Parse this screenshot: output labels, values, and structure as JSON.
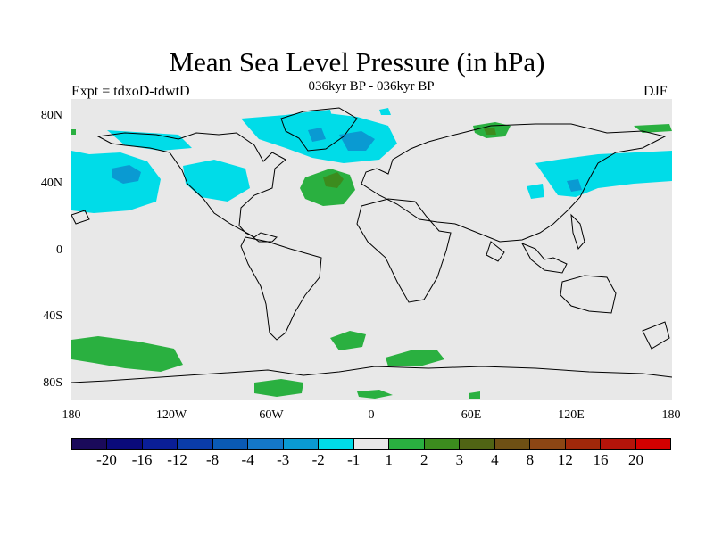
{
  "header": {
    "title": "Mean Sea Level Pressure (in hPa)",
    "subtitle": "036kyr BP - 036kyr BP",
    "experiment": "Expt = tdxoD-tdwtD",
    "season": "DJF"
  },
  "map": {
    "background_color": "#e8e8e8",
    "lat_labels": [
      "80N",
      "40N",
      "0",
      "40S",
      "80S"
    ],
    "lon_labels": [
      "180",
      "120W",
      "60W",
      "0",
      "60E",
      "120E",
      "180"
    ]
  },
  "colorbar": {
    "colors": [
      "#1a0a5a",
      "#0a0a7a",
      "#0a1e96",
      "#0a3ca8",
      "#0a5ab4",
      "#1478c8",
      "#0a9ad2",
      "#00dce8",
      "#e8e8e8",
      "#2ab040",
      "#3c8c1e",
      "#506414",
      "#6e5014",
      "#8c4614",
      "#a0280a",
      "#b4140a",
      "#d20000"
    ],
    "labels": [
      "-20",
      "-16",
      "-12",
      "-8",
      "-4",
      "-3",
      "-2",
      "-1",
      "1",
      "2",
      "3",
      "4",
      "8",
      "12",
      "16",
      "20"
    ]
  }
}
